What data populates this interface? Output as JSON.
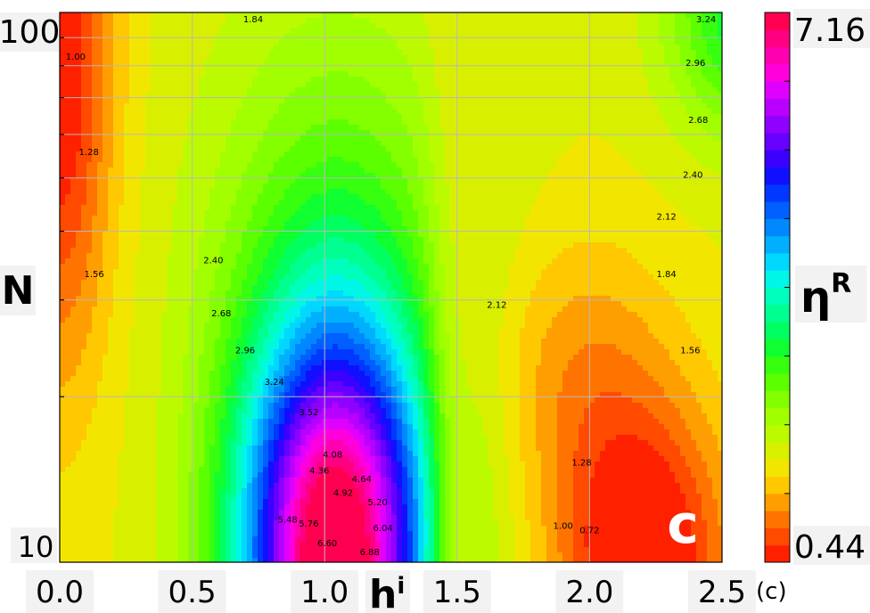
{
  "panel_label": "c",
  "panel_caption": "(c)",
  "colorbar": {
    "min_label": "0.44",
    "max_label": "7.16",
    "label_main": "η",
    "label_sup": "R",
    "colors": [
      "#ff2000",
      "#ff4a00",
      "#ff7400",
      "#ff9e00",
      "#ffc800",
      "#f2e600",
      "#d8f000",
      "#bcfa00",
      "#a2ff00",
      "#84ff00",
      "#5cff00",
      "#36ff10",
      "#10ff30",
      "#00ff60",
      "#00ff90",
      "#00ffbc",
      "#00f6e6",
      "#00d8ff",
      "#00b0ff",
      "#0088ff",
      "#0060ff",
      "#0038ff",
      "#1010ff",
      "#3c00ff",
      "#6600ff",
      "#9000ff",
      "#b800ff",
      "#e000ff",
      "#ff00dc",
      "#ff00b0",
      "#ff0080",
      "#ff0050"
    ]
  },
  "chart_data": {
    "type": "contour",
    "xlabel_main": "h",
    "xlabel_sub": "i",
    "ylabel": "N",
    "xlim": [
      0.0,
      2.5
    ],
    "ylim": [
      10,
      100
    ],
    "yscale": "log",
    "grid": true,
    "x_ticks": [
      0.0,
      0.5,
      1.0,
      1.5,
      2.0,
      2.5
    ],
    "x_tick_labels": [
      "0.0",
      "0.5",
      "1.0",
      "1.5",
      "2.0",
      "2.5"
    ],
    "y_tick_labels": [
      "10",
      "100"
    ],
    "y_minor_ticks": [
      20,
      30,
      40,
      50,
      60,
      70,
      80,
      90
    ],
    "value_range": [
      0.44,
      7.16
    ],
    "contour_levels": [
      0.72,
      1.0,
      1.28,
      1.56,
      1.84,
      2.12,
      2.4,
      2.68,
      2.96,
      3.24,
      3.52,
      3.8,
      4.08,
      4.36,
      4.64,
      4.92,
      5.2,
      5.48,
      5.76,
      6.04,
      6.32,
      6.6,
      6.88
    ],
    "contour_labels": [
      {
        "text": "1.00",
        "x": 0.06,
        "y": 82
      },
      {
        "text": "1.28",
        "x": 0.11,
        "y": 55
      },
      {
        "text": "1.56",
        "x": 0.13,
        "y": 33
      },
      {
        "text": "1.84",
        "x": 0.73,
        "y": 96
      },
      {
        "text": "2.40",
        "x": 0.58,
        "y": 35
      },
      {
        "text": "2.68",
        "x": 0.61,
        "y": 28
      },
      {
        "text": "2.96",
        "x": 0.7,
        "y": 24
      },
      {
        "text": "3.24",
        "x": 0.81,
        "y": 21
      },
      {
        "text": "3.52",
        "x": 0.94,
        "y": 18.5
      },
      {
        "text": "4.08",
        "x": 1.03,
        "y": 15.5
      },
      {
        "text": "4.36",
        "x": 0.98,
        "y": 14.5
      },
      {
        "text": "4.64",
        "x": 1.14,
        "y": 14.0
      },
      {
        "text": "4.92",
        "x": 1.07,
        "y": 13.2
      },
      {
        "text": "5.20",
        "x": 1.2,
        "y": 12.7
      },
      {
        "text": "5.48",
        "x": 0.86,
        "y": 11.8
      },
      {
        "text": "5.76",
        "x": 0.94,
        "y": 11.6
      },
      {
        "text": "6.04",
        "x": 1.22,
        "y": 11.4
      },
      {
        "text": "6.60",
        "x": 1.01,
        "y": 10.7
      },
      {
        "text": "6.88",
        "x": 1.17,
        "y": 10.3
      },
      {
        "text": "3.24",
        "x": 2.44,
        "y": 96
      },
      {
        "text": "2.96",
        "x": 2.4,
        "y": 80
      },
      {
        "text": "2.68",
        "x": 2.41,
        "y": 63
      },
      {
        "text": "2.40",
        "x": 2.39,
        "y": 50
      },
      {
        "text": "2.12",
        "x": 2.29,
        "y": 42
      },
      {
        "text": "2.12",
        "x": 1.65,
        "y": 29
      },
      {
        "text": "1.84",
        "x": 2.29,
        "y": 33
      },
      {
        "text": "1.56",
        "x": 2.38,
        "y": 24
      },
      {
        "text": "1.28",
        "x": 1.97,
        "y": 15
      },
      {
        "text": "1.00",
        "x": 1.9,
        "y": 11.5
      },
      {
        "text": "0.72",
        "x": 2.0,
        "y": 11.3
      }
    ]
  }
}
